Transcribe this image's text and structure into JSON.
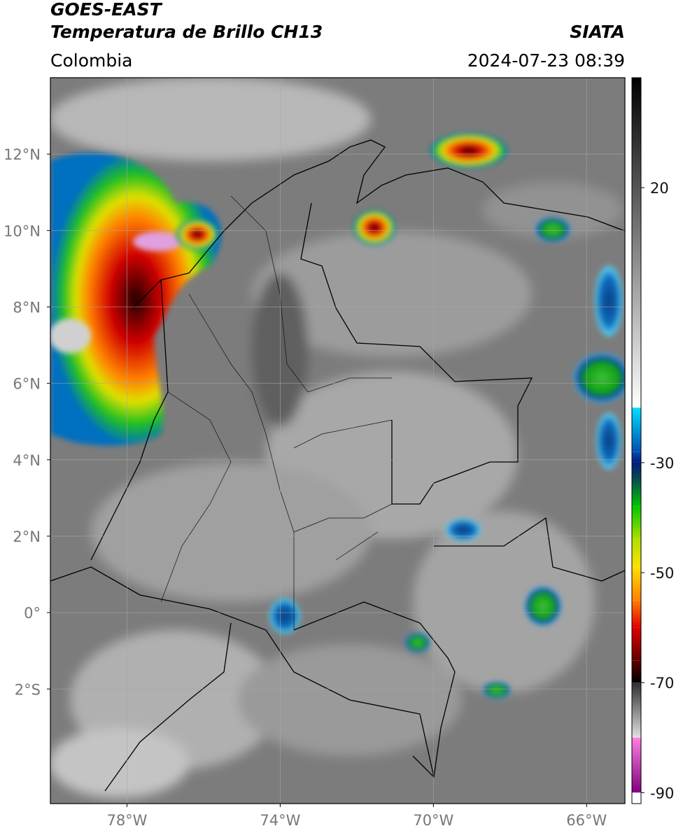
{
  "header": {
    "title": "GOES-EAST",
    "subtitle": "Temperatura de Brillo CH13",
    "source": "SIATA",
    "region": "Colombia",
    "datetime": "2024-07-23 08:39"
  },
  "map": {
    "xlim": [
      -80,
      -65
    ],
    "ylim": [
      -5,
      14
    ],
    "xticks": [
      {
        "value": -78,
        "label": "78°W"
      },
      {
        "value": -74,
        "label": "74°W"
      },
      {
        "value": -70,
        "label": "70°W"
      },
      {
        "value": -66,
        "label": "66°W"
      }
    ],
    "yticks": [
      {
        "value": 12,
        "label": "12°N"
      },
      {
        "value": 10,
        "label": "10°N"
      },
      {
        "value": 8,
        "label": "8°N"
      },
      {
        "value": 6,
        "label": "6°N"
      },
      {
        "value": 4,
        "label": "4°N"
      },
      {
        "value": 2,
        "label": "2°N"
      },
      {
        "value": 0,
        "label": "0°"
      },
      {
        "value": -2,
        "label": "2°S"
      }
    ],
    "grid": true
  },
  "colorbar": {
    "lim": [
      -92,
      40
    ],
    "ticks": [
      20,
      -30,
      -50,
      -70,
      -90
    ],
    "colormap": [
      [
        40,
        "#000000"
      ],
      [
        -20,
        "#ffffff"
      ],
      [
        -20,
        "#00e0ff"
      ],
      [
        -28,
        "#0050b0"
      ],
      [
        -30,
        "#001a80"
      ],
      [
        -33,
        "#0a4a50"
      ],
      [
        -38,
        "#00c800"
      ],
      [
        -44,
        "#b0e000"
      ],
      [
        -49,
        "#ffe000"
      ],
      [
        -55,
        "#ff8000"
      ],
      [
        -60,
        "#e00000"
      ],
      [
        -66,
        "#600000"
      ],
      [
        -70,
        "#000000"
      ],
      [
        -70,
        "#303030"
      ],
      [
        -80,
        "#e0e0e0"
      ],
      [
        -80,
        "#ff80e0"
      ],
      [
        -90,
        "#800080"
      ],
      [
        -90,
        "#ffffff"
      ],
      [
        -92,
        "#ffffff"
      ]
    ]
  }
}
